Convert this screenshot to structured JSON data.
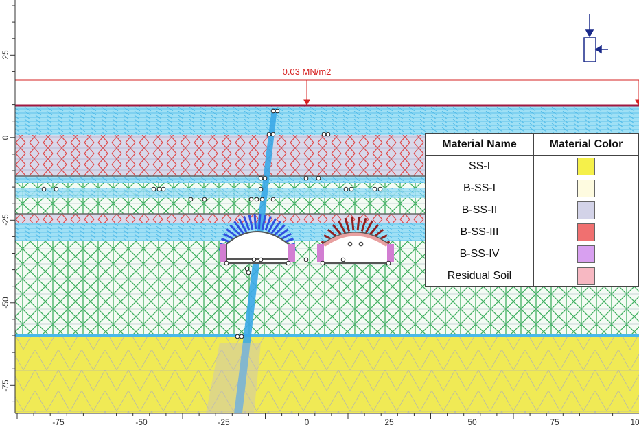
{
  "load": {
    "label": "0.03 MN/m2"
  },
  "x_axis": {
    "ticks": [
      "-75",
      "-50",
      "-25",
      "0",
      "25",
      "50",
      "75",
      "10"
    ]
  },
  "y_axis": {
    "ticks": [
      "25",
      "0",
      "-25",
      "-50",
      "-75"
    ]
  },
  "legend": {
    "headers": [
      "Material Name",
      "Material Color"
    ],
    "rows": [
      {
        "name": "SS-I",
        "color": "#f5f04a"
      },
      {
        "name": "B-SS-I",
        "color": "#fefbe0"
      },
      {
        "name": "B-SS-II",
        "color": "#d3d3e8"
      },
      {
        "name": "B-SS-III",
        "color": "#f07070"
      },
      {
        "name": "B-SS-IV",
        "color": "#d8a0f0"
      },
      {
        "name": "Residual Soil",
        "color": "#f7b8c2"
      }
    ]
  },
  "colors": {
    "soil_yellow": "#f0ea55",
    "mesh_cyan": "#6ad0f0",
    "mesh_green": "#40b060",
    "mesh_red": "#e04848",
    "load_red": "#d62020",
    "bolts_blue": "#3050e0",
    "bolts_maroon": "#902020"
  }
}
